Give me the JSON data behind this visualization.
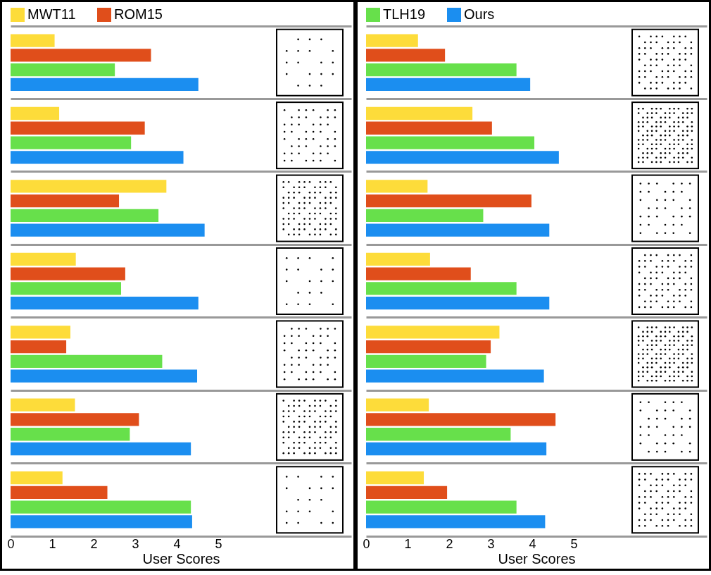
{
  "chart_data": [
    {
      "type": "bar",
      "orientation": "horizontal",
      "categories": [
        null,
        null,
        null,
        null,
        null,
        null,
        null
      ],
      "series": [
        {
          "name": "MWT11",
          "color": "#fddc3a",
          "values": [
            1.06,
            1.17,
            3.75,
            1.57,
            1.44,
            1.55,
            1.25
          ]
        },
        {
          "name": "ROM15",
          "color": "#e04e1b",
          "values": [
            3.38,
            3.23,
            2.61,
            2.76,
            1.34,
            3.09,
            2.33
          ]
        },
        {
          "color": "#67e04b",
          "values": [
            2.51,
            2.9,
            3.56,
            2.66,
            3.65,
            2.87,
            4.34
          ]
        },
        {
          "color": "#1b8ef0",
          "values": [
            4.52,
            4.16,
            4.67,
            4.52,
            4.49,
            4.34,
            4.37
          ]
        }
      ],
      "xlim": [
        0,
        8.2
      ],
      "xticks": [
        0,
        1,
        2,
        3,
        4,
        5
      ],
      "xlabel": "User Scores",
      "legend": "top left",
      "grid": "y",
      "tick_labels": "x"
    },
    {
      "type": "bar",
      "orientation": "horizontal",
      "categories": [
        null,
        null,
        null,
        null,
        null,
        null,
        null
      ],
      "series": [
        {
          "color": "#fddc3a",
          "values": [
            1.25,
            2.56,
            1.48,
            1.54,
            3.21,
            1.51,
            1.39
          ]
        },
        {
          "color": "#e04e1b",
          "values": [
            1.9,
            3.03,
            3.98,
            2.52,
            3.0,
            4.56,
            1.95
          ]
        },
        {
          "name": "TLH19",
          "color": "#67e04b",
          "values": [
            3.62,
            4.05,
            2.82,
            3.62,
            2.89,
            3.48,
            3.62
          ]
        },
        {
          "name": "Ours",
          "color": "#1b8ef0",
          "values": [
            3.95,
            4.64,
            4.41,
            4.41,
            4.28,
            4.34,
            4.31
          ]
        }
      ],
      "xlim": [
        0,
        8.2
      ],
      "xticks": [
        0,
        1,
        2,
        3,
        4,
        5
      ],
      "xlabel": "User Scores",
      "legend": "top left",
      "grid": "y",
      "tick_labels": "x"
    }
  ]
}
